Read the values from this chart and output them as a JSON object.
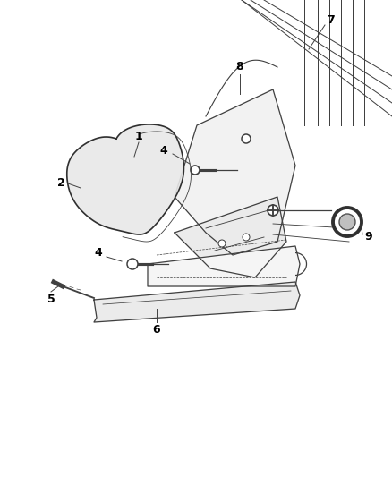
{
  "bg_color": "#ffffff",
  "line_color": "#404040",
  "label_color": "#000000",
  "figsize": [
    4.38,
    5.33
  ],
  "dpi": 100
}
